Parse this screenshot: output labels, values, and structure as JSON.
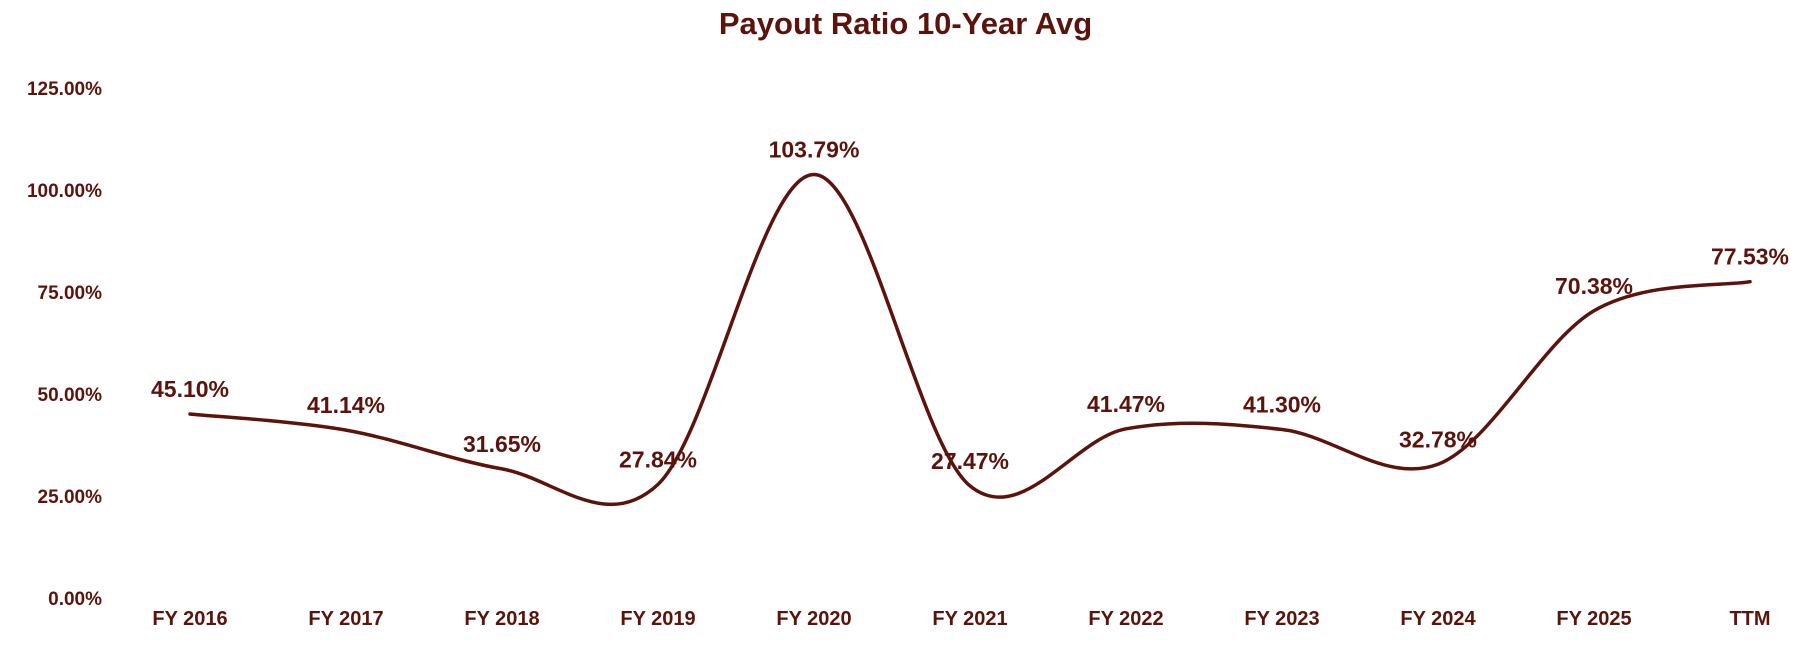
{
  "colors": {
    "series": "#5c130b",
    "text": "#5c130b",
    "background": "#ffffff"
  },
  "chart_data": {
    "type": "line",
    "title": "Payout Ratio 10-Year Avg",
    "xlabel": "",
    "ylabel": "",
    "categories": [
      "FY 2016",
      "FY 2017",
      "FY 2018",
      "FY 2019",
      "FY 2020",
      "FY 2021",
      "FY 2022",
      "FY 2023",
      "FY 2024",
      "FY 2025",
      "TTM"
    ],
    "series": [
      {
        "values": [
          45.1,
          41.14,
          31.65,
          27.84,
          103.79,
          27.47,
          41.47,
          41.3,
          32.78,
          70.38,
          77.53
        ],
        "labels": [
          "45.10%",
          "41.14%",
          "31.65%",
          "27.84%",
          "103.79%",
          "27.47%",
          "41.47%",
          "41.30%",
          "32.78%",
          "70.38%",
          "77.53%"
        ]
      }
    ],
    "ylim": [
      0,
      125
    ],
    "yticks": [
      0,
      25,
      50,
      75,
      100,
      125
    ],
    "ytick_labels": [
      "0.00%",
      "25.00%",
      "50.00%",
      "75.00%",
      "100.00%",
      "125.00%"
    ],
    "smooth": true,
    "grid": false,
    "legend": "none"
  }
}
